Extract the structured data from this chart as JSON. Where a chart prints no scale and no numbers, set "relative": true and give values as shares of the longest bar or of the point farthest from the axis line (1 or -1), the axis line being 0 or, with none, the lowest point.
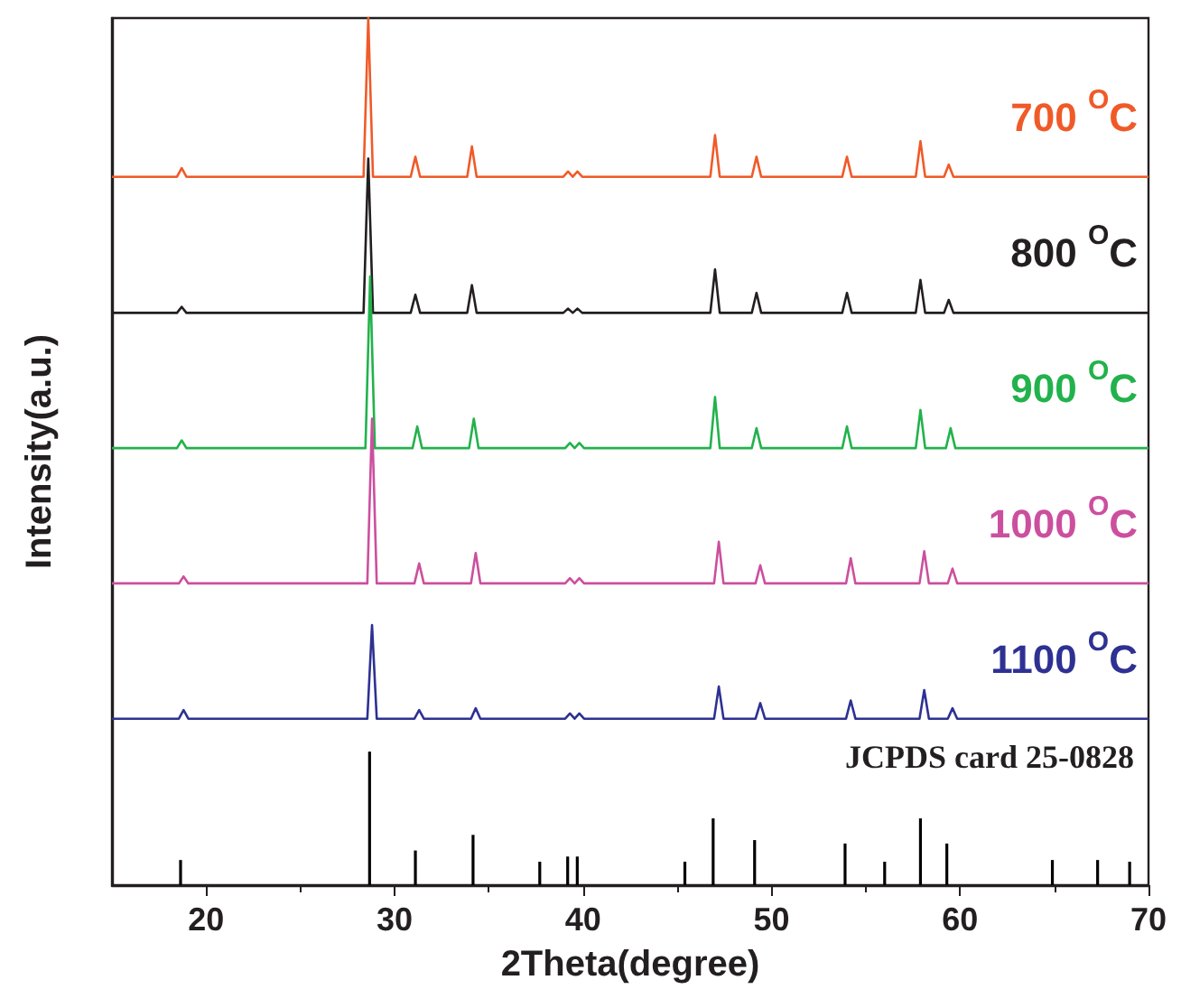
{
  "chart_data": {
    "type": "line",
    "relative": true,
    "xlabel": "2Theta(degree)",
    "ylabel": "Intensity(a.u.)",
    "xlim": [
      15,
      70
    ],
    "xticks": [
      20,
      30,
      40,
      50,
      60,
      70
    ],
    "grid": false,
    "legend": false,
    "annotations": [
      "JCPDS card 25-0828"
    ],
    "series": [
      {
        "name": "700 $^{O}$C",
        "color": "#f05a28",
        "x": [
          15,
          18.45,
          18.7,
          18.95,
          28.35,
          28.6,
          28.85,
          30.85,
          31.1,
          31.35,
          33.85,
          34.1,
          34.35,
          38.95,
          39.2,
          39.45,
          39.7,
          39.95,
          46.75,
          47.0,
          47.25,
          48.95,
          49.2,
          49.45,
          53.75,
          54.0,
          54.25,
          57.65,
          57.9,
          58.15,
          59.15,
          59.4,
          59.65,
          70
        ],
        "values": [
          0.817,
          0.817,
          0.827,
          0.817,
          0.817,
          1.0,
          0.817,
          0.817,
          0.84,
          0.817,
          0.817,
          0.852,
          0.817,
          0.817,
          0.823,
          0.817,
          0.823,
          0.817,
          0.817,
          0.865,
          0.817,
          0.817,
          0.84,
          0.817,
          0.817,
          0.84,
          0.817,
          0.817,
          0.858,
          0.817,
          0.817,
          0.831,
          0.817,
          0.817
        ]
      },
      {
        "name": "800 $^{O}$C",
        "color": "#231f20",
        "x": [
          15,
          18.45,
          18.7,
          18.95,
          28.35,
          28.6,
          28.85,
          30.85,
          31.1,
          31.35,
          33.85,
          34.1,
          34.35,
          38.95,
          39.2,
          39.45,
          39.7,
          39.95,
          46.75,
          47.0,
          47.25,
          48.95,
          49.2,
          49.45,
          53.75,
          54.0,
          54.25,
          57.65,
          57.9,
          58.15,
          59.15,
          59.4,
          59.65,
          70
        ],
        "values": [
          0.66,
          0.66,
          0.667,
          0.66,
          0.66,
          0.838,
          0.66,
          0.66,
          0.681,
          0.66,
          0.66,
          0.692,
          0.66,
          0.66,
          0.665,
          0.66,
          0.665,
          0.66,
          0.66,
          0.71,
          0.66,
          0.66,
          0.683,
          0.66,
          0.66,
          0.683,
          0.66,
          0.66,
          0.698,
          0.66,
          0.66,
          0.675,
          0.66,
          0.66
        ]
      },
      {
        "name": "900 $^{O}$C",
        "color": "#22b24c",
        "x": [
          15,
          18.45,
          18.7,
          18.95,
          28.45,
          28.7,
          28.95,
          30.95,
          31.2,
          31.45,
          33.95,
          34.2,
          34.45,
          39.05,
          39.3,
          39.55,
          39.8,
          40.05,
          46.75,
          47.0,
          47.25,
          48.95,
          49.2,
          49.45,
          53.75,
          54.0,
          54.25,
          57.65,
          57.9,
          58.15,
          59.25,
          59.5,
          59.75,
          70
        ],
        "values": [
          0.504,
          0.504,
          0.513,
          0.504,
          0.504,
          0.702,
          0.504,
          0.504,
          0.529,
          0.504,
          0.504,
          0.538,
          0.504,
          0.504,
          0.51,
          0.504,
          0.51,
          0.504,
          0.504,
          0.563,
          0.504,
          0.504,
          0.527,
          0.504,
          0.504,
          0.529,
          0.504,
          0.504,
          0.548,
          0.504,
          0.504,
          0.527,
          0.504,
          0.504
        ]
      },
      {
        "name": "1000 $^{O}$C",
        "color": "#cc4f9e",
        "x": [
          15,
          18.55,
          18.8,
          19.05,
          28.55,
          28.8,
          29.05,
          31.05,
          31.3,
          31.55,
          34.05,
          34.3,
          34.55,
          39.05,
          39.3,
          39.55,
          39.8,
          40.05,
          46.95,
          47.2,
          47.45,
          49.15,
          49.4,
          49.65,
          53.95,
          54.2,
          54.45,
          57.85,
          58.1,
          58.35,
          59.35,
          59.6,
          59.85,
          70
        ],
        "values": [
          0.348,
          0.348,
          0.356,
          0.348,
          0.348,
          0.538,
          0.348,
          0.348,
          0.371,
          0.348,
          0.348,
          0.383,
          0.348,
          0.348,
          0.354,
          0.348,
          0.354,
          0.348,
          0.348,
          0.396,
          0.348,
          0.348,
          0.369,
          0.348,
          0.348,
          0.377,
          0.348,
          0.348,
          0.385,
          0.348,
          0.348,
          0.365,
          0.348,
          0.348
        ]
      },
      {
        "name": "1100 $^{O}$C",
        "color": "#2e3192",
        "x": [
          15,
          18.55,
          18.8,
          19.05,
          28.55,
          28.8,
          29.05,
          31.05,
          31.3,
          31.55,
          34.05,
          34.3,
          34.55,
          39.05,
          39.3,
          39.55,
          39.8,
          40.05,
          46.95,
          47.2,
          47.45,
          49.15,
          49.4,
          49.65,
          53.95,
          54.2,
          54.45,
          57.85,
          58.1,
          58.35,
          59.35,
          59.6,
          59.85,
          70
        ],
        "values": [
          0.192,
          0.192,
          0.202,
          0.192,
          0.192,
          0.3,
          0.192,
          0.192,
          0.202,
          0.192,
          0.192,
          0.204,
          0.192,
          0.192,
          0.198,
          0.192,
          0.198,
          0.192,
          0.192,
          0.229,
          0.192,
          0.192,
          0.21,
          0.192,
          0.192,
          0.213,
          0.192,
          0.192,
          0.225,
          0.192,
          0.192,
          0.204,
          0.192,
          0.192
        ]
      },
      {
        "type": "bar",
        "color": "#000000",
        "x": [
          18.64,
          28.67,
          31.1,
          34.16,
          37.7,
          39.18,
          39.69,
          45.4,
          46.9,
          49.1,
          53.9,
          56.0,
          57.9,
          59.3,
          64.9,
          67.3,
          69.0
        ],
        "values": [
          0.029,
          0.154,
          0.04,
          0.058,
          0.027,
          0.033,
          0.033,
          0.027,
          0.077,
          0.052,
          0.048,
          0.027,
          0.077,
          0.048,
          0.029,
          0.029,
          0.027
        ]
      }
    ]
  }
}
